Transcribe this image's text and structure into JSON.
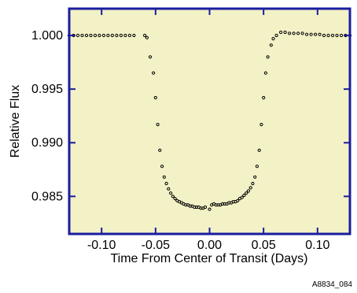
{
  "chart_data": {
    "type": "scatter",
    "title": "",
    "xlabel": "Time From Center of Transit (Days)",
    "ylabel": "Relative Flux",
    "xlim": [
      -0.13,
      0.13
    ],
    "ylim": [
      0.9815,
      1.0025
    ],
    "x_ticks": [
      -0.1,
      -0.05,
      0.0,
      0.05,
      0.1
    ],
    "x_tick_labels": [
      "-0.10",
      "-0.05",
      "0.00",
      "0.05",
      "0.10"
    ],
    "y_ticks": [
      0.985,
      0.99,
      0.995,
      1.0
    ],
    "y_tick_labels": [
      "0.985",
      "0.990",
      "0.995",
      "1.000"
    ],
    "grid": false,
    "plot_background": "#f3f1c6",
    "frame_color": "#1a1d9e",
    "marker_color": "#000000",
    "x": [
      -0.13,
      -0.126,
      -0.122,
      -0.118,
      -0.114,
      -0.11,
      -0.106,
      -0.102,
      -0.098,
      -0.094,
      -0.09,
      -0.086,
      -0.082,
      -0.078,
      -0.074,
      -0.07,
      -0.06,
      -0.058,
      -0.055,
      -0.052,
      -0.05,
      -0.048,
      -0.046,
      -0.044,
      -0.042,
      -0.04,
      -0.038,
      -0.036,
      -0.034,
      -0.032,
      -0.03,
      -0.028,
      -0.026,
      -0.024,
      -0.022,
      -0.02,
      -0.018,
      -0.016,
      -0.014,
      -0.012,
      -0.01,
      -0.008,
      -0.006,
      -0.004,
      0.0,
      0.002,
      0.004,
      0.006,
      0.008,
      0.01,
      0.012,
      0.014,
      0.016,
      0.018,
      0.02,
      0.022,
      0.024,
      0.026,
      0.028,
      0.03,
      0.032,
      0.034,
      0.036,
      0.038,
      0.04,
      0.042,
      0.044,
      0.046,
      0.048,
      0.05,
      0.052,
      0.054,
      0.057,
      0.059,
      0.062,
      0.066,
      0.07,
      0.074,
      0.078,
      0.082,
      0.086,
      0.09,
      0.094,
      0.098,
      0.102,
      0.106,
      0.11,
      0.114,
      0.118,
      0.122,
      0.126,
      0.13
    ],
    "y": [
      1.0,
      1.0,
      1.0,
      1.0,
      1.0,
      1.0,
      1.0,
      1.0,
      1.0,
      1.0,
      1.0,
      1.0,
      1.0,
      1.0,
      1.0,
      1.0,
      1.0,
      0.9998,
      0.998,
      0.9965,
      0.9942,
      0.9917,
      0.9893,
      0.9878,
      0.9868,
      0.9862,
      0.9857,
      0.9853,
      0.985,
      0.9848,
      0.9846,
      0.9845,
      0.9844,
      0.9843,
      0.9842,
      0.9842,
      0.9841,
      0.9841,
      0.984,
      0.984,
      0.984,
      0.9839,
      0.9839,
      0.984,
      0.9838,
      0.9842,
      0.9843,
      0.9842,
      0.9842,
      0.9842,
      0.9843,
      0.9843,
      0.9843,
      0.9844,
      0.9844,
      0.9845,
      0.9845,
      0.9846,
      0.9848,
      0.9849,
      0.9851,
      0.9853,
      0.9855,
      0.9858,
      0.9862,
      0.9868,
      0.9878,
      0.9893,
      0.9917,
      0.9942,
      0.9965,
      0.998,
      0.9991,
      0.9997,
      1.0,
      1.0003,
      1.0003,
      1.0002,
      1.0002,
      1.0002,
      1.0002,
      1.0001,
      1.0001,
      1.0001,
      1.0001,
      1.0,
      1.0,
      1.0,
      1.0,
      1.0,
      1.0,
      1.0
    ],
    "annotation": "A8834_084"
  }
}
